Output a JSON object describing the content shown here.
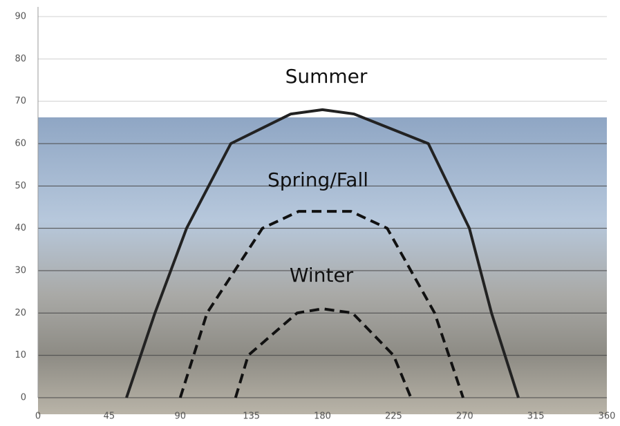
{
  "chart_data": {
    "type": "line",
    "annotations": [
      "Summer",
      "Spring/Fall",
      "Winter"
    ],
    "xlim": [
      0,
      360
    ],
    "xticks": [
      0,
      45,
      90,
      135,
      180,
      225,
      270,
      315,
      360
    ],
    "ylim": [
      0,
      90
    ],
    "yticks": [
      0,
      10,
      20,
      30,
      40,
      50,
      60,
      70,
      80,
      90
    ],
    "grid": true,
    "series": [
      {
        "name": "Summer",
        "color": "#222222",
        "style": "solid",
        "x": [
          56,
          74,
          94,
          122,
          160,
          180,
          200,
          247,
          273,
          287,
          304
        ],
        "values": [
          0,
          20,
          40,
          60,
          67,
          68,
          67,
          60,
          40,
          20,
          0
        ]
      },
      {
        "name": "Spring/Fall",
        "color": "#111111",
        "style": "dashed",
        "x": [
          90,
          107,
          142,
          165,
          180,
          198,
          221,
          251,
          269
        ],
        "values": [
          0,
          20,
          40,
          44,
          44,
          44,
          40,
          20,
          0
        ]
      },
      {
        "name": "Winter",
        "color": "#111111",
        "style": "dashed",
        "x": [
          125,
          133,
          164,
          180,
          199,
          225,
          236
        ],
        "values": [
          0,
          10,
          20,
          21,
          20,
          10,
          0
        ]
      }
    ]
  }
}
